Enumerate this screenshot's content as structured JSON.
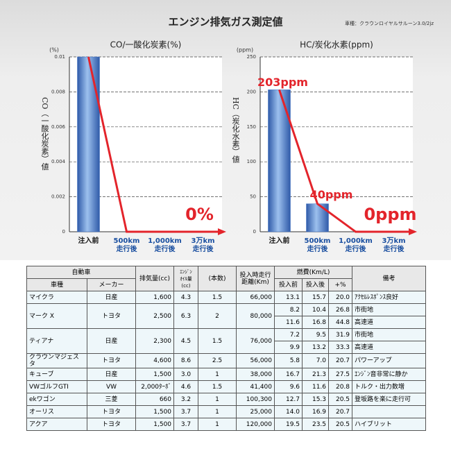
{
  "header": {
    "title": "エンジン排気ガス測定値",
    "note": "車種：クラウンロイヤルサルーン3.0/2jz"
  },
  "chart_data": [
    {
      "type": "combo",
      "title": "CO/一酸化炭素(%)",
      "yunit": "(%)",
      "ylabel": "CO（一酸化炭素）値",
      "categories": [
        "注入前",
        "500km\n走行後",
        "1,000km\n走行後",
        "3万km\n走行後"
      ],
      "bar": {
        "values": [
          0.01,
          0,
          0,
          0
        ],
        "color": "#3d6fc2"
      },
      "line": {
        "values": [
          0.01,
          0,
          0,
          0
        ],
        "color": "#e3242b",
        "value_labels": [
          null,
          null,
          null,
          "0%"
        ]
      },
      "ylim": [
        0,
        0.01
      ],
      "yticks": [
        0,
        0.002,
        0.004,
        0.006,
        0.008,
        0.01
      ],
      "grid": true
    },
    {
      "type": "combo",
      "title": "HC/炭化水素(ppm)",
      "yunit": "(ppm)",
      "ylabel": "HC（炭化水素）値",
      "categories": [
        "注入前",
        "500km\n走行後",
        "1,000km\n走行後",
        "3万km\n走行後"
      ],
      "bar": {
        "values": [
          203,
          40,
          0,
          0
        ],
        "color": "#3d6fc2"
      },
      "line": {
        "values": [
          203,
          40,
          0,
          0
        ],
        "color": "#e3242b",
        "value_labels": [
          "203ppm",
          "40ppm",
          null,
          "0ppm"
        ]
      },
      "ylim": [
        0,
        250
      ],
      "yticks": [
        0,
        50,
        100,
        150,
        200,
        250
      ],
      "grid": true
    }
  ],
  "table": {
    "header": [
      [
        "自動車",
        "排気量(cc)",
        "ｴﾝｼﾞﾝ\nｵｲﾙ量\n(cc)",
        "(本数)",
        "投入時走行\n距離(Km)",
        "燃費(Km/L)",
        "備考"
      ],
      [
        "車種",
        "メーカー",
        "投入前",
        "投入後",
        "+%"
      ]
    ],
    "rows": [
      {
        "cells": [
          "マイクラ",
          "日産",
          "1,600",
          "4.3",
          "1.5",
          "66,000"
        ],
        "fuel": [
          [
            "13.1",
            "15.7",
            "20.0",
            "ｱｸｾﾙﾚｽﾎﾟﾝｽ良好"
          ]
        ]
      },
      {
        "cells": [
          "マーク X",
          "トヨタ",
          "2,500",
          "6.3",
          "2",
          "80,000"
        ],
        "fuel": [
          [
            "8.2",
            "10.4",
            "26.8",
            "市街地"
          ],
          [
            "11.6",
            "16.8",
            "44.8",
            "高速道"
          ]
        ]
      },
      {
        "cells": [
          "ティアナ",
          "日産",
          "2,300",
          "4.5",
          "1.5",
          "76,000"
        ],
        "fuel": [
          [
            "7.2",
            "9.5",
            "31.9",
            "市街地"
          ],
          [
            "9.9",
            "13.2",
            "33.3",
            "高速道"
          ]
        ]
      },
      {
        "cells": [
          "クラウンマジェスタ",
          "トヨタ",
          "4,600",
          "8.6",
          "2.5",
          "56,000"
        ],
        "fuel": [
          [
            "5.8",
            "7.0",
            "20.7",
            "パワーアップ"
          ]
        ]
      },
      {
        "cells": [
          "キューブ",
          "日産",
          "1,500",
          "3.0",
          "1",
          "38,000"
        ],
        "fuel": [
          [
            "16.7",
            "21.3",
            "27.5",
            "ｴﾝｼﾞﾝ音非常に静か"
          ]
        ]
      },
      {
        "cells": [
          "VWゴルフGTI",
          "VW",
          "2,000ﾀｰﾎﾞ",
          "4.6",
          "1.5",
          "41,400"
        ],
        "fuel": [
          [
            "9.6",
            "11.6",
            "20.8",
            "トルク・出力数増"
          ]
        ]
      },
      {
        "cells": [
          "ekワゴン",
          "三菱",
          "660",
          "3.2",
          "1",
          "100,300"
        ],
        "fuel": [
          [
            "12.7",
            "15.3",
            "20.5",
            "登坂路を楽に走行可"
          ]
        ]
      },
      {
        "cells": [
          "オーリス",
          "トヨタ",
          "1,500",
          "3.7",
          "1",
          "25,000"
        ],
        "fuel": [
          [
            "14.0",
            "16.9",
            "20.7"
          ]
        ]
      },
      {
        "cells": [
          "アクア",
          "トヨタ",
          "1,500",
          "3.7",
          "1",
          "120,000"
        ],
        "fuel": [
          [
            "19.5",
            "23.5",
            "20.5",
            "ハイブリット"
          ]
        ]
      }
    ]
  }
}
